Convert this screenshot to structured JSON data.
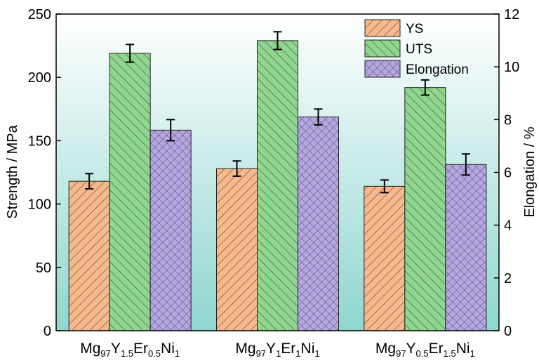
{
  "chart_data": {
    "type": "bar",
    "categories": [
      {
        "parts": [
          {
            "t": "Mg",
            "sub": false
          },
          {
            "t": "97",
            "sub": true
          },
          {
            "t": "Y",
            "sub": false
          },
          {
            "t": "1.5",
            "sub": true
          },
          {
            "t": "Er",
            "sub": false
          },
          {
            "t": "0.5",
            "sub": true
          },
          {
            "t": "Ni",
            "sub": false
          },
          {
            "t": "1",
            "sub": true
          }
        ]
      },
      {
        "parts": [
          {
            "t": "Mg",
            "sub": false
          },
          {
            "t": "97",
            "sub": true
          },
          {
            "t": "Y",
            "sub": false
          },
          {
            "t": "1",
            "sub": true
          },
          {
            "t": "Er",
            "sub": false
          },
          {
            "t": "1",
            "sub": true
          },
          {
            "t": "Ni",
            "sub": false
          },
          {
            "t": "1",
            "sub": true
          }
        ]
      },
      {
        "parts": [
          {
            "t": "Mg",
            "sub": false
          },
          {
            "t": "97",
            "sub": true
          },
          {
            "t": "Y",
            "sub": false
          },
          {
            "t": "0.5",
            "sub": true
          },
          {
            "t": "Er",
            "sub": false
          },
          {
            "t": "1.5",
            "sub": true
          },
          {
            "t": "Ni",
            "sub": false
          },
          {
            "t": "1",
            "sub": true
          }
        ]
      }
    ],
    "series": [
      {
        "name": "YS",
        "axis": "left",
        "values": [
          118,
          128,
          114
        ],
        "errors": [
          6,
          6,
          5
        ],
        "color": "#f7b98c",
        "pattern": "diag-right"
      },
      {
        "name": "UTS",
        "axis": "left",
        "values": [
          219,
          229,
          192
        ],
        "errors": [
          7,
          7,
          6
        ],
        "color": "#8fd68f",
        "pattern": "diag-left"
      },
      {
        "name": "Elongation",
        "axis": "right",
        "values": [
          7.6,
          8.1,
          6.3
        ],
        "errors": [
          0.4,
          0.3,
          0.4
        ],
        "color": "#b7a6e6",
        "pattern": "cross"
      }
    ],
    "ylabel": "Strength / MPa",
    "ylim": [
      0,
      250
    ],
    "yticks": [
      0,
      50,
      100,
      150,
      200,
      250
    ],
    "y2label": "Elongation / %",
    "y2lim": [
      0,
      12
    ],
    "y2ticks": [
      0,
      2,
      4,
      6,
      8,
      10,
      12
    ],
    "legend_position": "top-right",
    "grid": false,
    "background_gradient": [
      "#ffffff",
      "#8fd6cf"
    ]
  }
}
